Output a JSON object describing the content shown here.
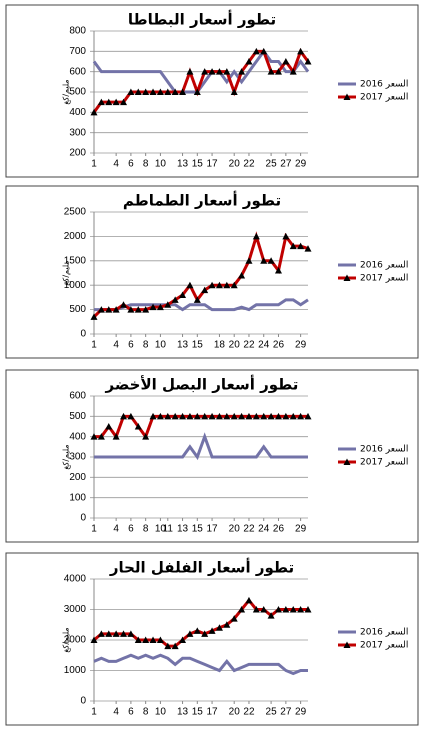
{
  "chart_data": [
    {
      "type": "line",
      "title": "تطور أسعار البطاطا",
      "y_label": "مليم/كغ",
      "x": [
        1,
        2,
        3,
        4,
        5,
        6,
        7,
        8,
        9,
        10,
        11,
        12,
        13,
        14,
        15,
        16,
        17,
        18,
        19,
        20,
        21,
        22,
        23,
        24,
        25,
        26,
        27,
        28,
        29,
        30
      ],
      "xlim": [
        1,
        30
      ],
      "xticks": [
        1,
        4,
        6,
        8,
        10,
        13,
        15,
        17,
        20,
        22,
        25,
        27,
        29
      ],
      "ylim": [
        200,
        800
      ],
      "yticks": [
        200,
        300,
        400,
        500,
        600,
        700,
        800
      ],
      "grid": true,
      "legend": "right",
      "series": [
        {
          "name": "السعر 2016",
          "color": "#7373a8",
          "marker": null,
          "values": [
            650,
            600,
            600,
            600,
            600,
            600,
            600,
            600,
            600,
            600,
            550,
            500,
            500,
            500,
            500,
            550,
            600,
            600,
            550,
            600,
            550,
            600,
            650,
            700,
            650,
            650,
            600,
            600,
            650,
            600
          ]
        },
        {
          "name": "السعر 2017",
          "color": "#c00000",
          "marker": "triangle",
          "values": [
            400,
            450,
            450,
            450,
            450,
            500,
            500,
            500,
            500,
            500,
            500,
            500,
            500,
            600,
            500,
            600,
            600,
            600,
            600,
            500,
            600,
            650,
            700,
            700,
            600,
            600,
            650,
            600,
            700,
            650
          ]
        }
      ]
    },
    {
      "type": "line",
      "title": "تطور أسعار الطماطم",
      "y_label": "مليم/كغ",
      "x": [
        1,
        2,
        3,
        4,
        5,
        6,
        7,
        8,
        9,
        10,
        11,
        12,
        13,
        14,
        15,
        16,
        17,
        18,
        19,
        20,
        21,
        22,
        23,
        24,
        25,
        26,
        27,
        28,
        29,
        30
      ],
      "xlim": [
        1,
        30
      ],
      "xticks": [
        1,
        4,
        6,
        8,
        10,
        13,
        15,
        18,
        20,
        22,
        24,
        26,
        29
      ],
      "ylim": [
        0,
        2500
      ],
      "yticks": [
        0,
        500,
        1000,
        1500,
        2000,
        2500
      ],
      "grid": true,
      "legend": "right",
      "series": [
        {
          "name": "السعر 2016",
          "color": "#7373a8",
          "marker": null,
          "values": [
            500,
            500,
            500,
            500,
            550,
            600,
            600,
            600,
            600,
            600,
            600,
            600,
            500,
            600,
            600,
            600,
            500,
            500,
            500,
            500,
            550,
            500,
            600,
            600,
            600,
            600,
            700,
            700,
            600,
            700
          ]
        },
        {
          "name": "السعر 2017",
          "color": "#c00000",
          "marker": "triangle",
          "values": [
            350,
            500,
            500,
            500,
            600,
            500,
            500,
            500,
            550,
            550,
            600,
            700,
            800,
            1000,
            700,
            900,
            1000,
            1000,
            1000,
            1000,
            1200,
            1500,
            2000,
            1500,
            1500,
            1300,
            2000,
            1800,
            1800,
            1750
          ]
        }
      ]
    },
    {
      "type": "line",
      "title": "تطور أسعار البصل الأخضر",
      "y_label": "مليم/كغ",
      "x": [
        1,
        2,
        3,
        4,
        5,
        6,
        7,
        8,
        9,
        10,
        11,
        12,
        13,
        14,
        15,
        16,
        17,
        18,
        19,
        20,
        21,
        22,
        23,
        24,
        25,
        26,
        27,
        28,
        29,
        30
      ],
      "xlim": [
        1,
        30
      ],
      "xticks": [
        1,
        4,
        6,
        8,
        10,
        11,
        13,
        15,
        17,
        20,
        22,
        24,
        26,
        29
      ],
      "ylim": [
        0,
        600
      ],
      "yticks": [
        0,
        100,
        200,
        300,
        400,
        500,
        600
      ],
      "grid": true,
      "legend": "right",
      "series": [
        {
          "name": "السعر 2016",
          "color": "#7373a8",
          "marker": null,
          "values": [
            300,
            300,
            300,
            300,
            300,
            300,
            300,
            300,
            300,
            300,
            300,
            300,
            300,
            350,
            300,
            400,
            300,
            300,
            300,
            300,
            300,
            300,
            300,
            350,
            300,
            300,
            300,
            300,
            300,
            300
          ]
        },
        {
          "name": "السعر 2017",
          "color": "#c00000",
          "marker": "triangle",
          "values": [
            400,
            400,
            450,
            400,
            500,
            500,
            450,
            400,
            500,
            500,
            500,
            500,
            500,
            500,
            500,
            500,
            500,
            500,
            500,
            500,
            500,
            500,
            500,
            500,
            500,
            500,
            500,
            500,
            500,
            500
          ]
        }
      ]
    },
    {
      "type": "line",
      "title": "تطور أسعار الفلفل الحار",
      "y_label": "مليم/كغ",
      "x": [
        1,
        2,
        3,
        4,
        5,
        6,
        7,
        8,
        9,
        10,
        11,
        12,
        13,
        14,
        15,
        16,
        17,
        18,
        19,
        20,
        21,
        22,
        23,
        24,
        25,
        26,
        27,
        28,
        29,
        30
      ],
      "xlim": [
        1,
        30
      ],
      "xticks": [
        1,
        4,
        6,
        8,
        10,
        13,
        15,
        17,
        20,
        22,
        25,
        27,
        29
      ],
      "ylim": [
        0,
        4000
      ],
      "yticks": [
        0,
        1000,
        2000,
        3000,
        4000
      ],
      "grid": true,
      "legend": "right",
      "series": [
        {
          "name": "السعر 2016",
          "color": "#7373a8",
          "marker": null,
          "values": [
            1300,
            1400,
            1300,
            1300,
            1400,
            1500,
            1400,
            1500,
            1400,
            1500,
            1400,
            1200,
            1400,
            1400,
            1300,
            1200,
            1100,
            1000,
            1300,
            1000,
            1100,
            1200,
            1200,
            1200,
            1200,
            1200,
            1000,
            900,
            1000,
            1000
          ]
        },
        {
          "name": "السعر 2017",
          "color": "#c00000",
          "marker": "triangle",
          "values": [
            2000,
            2200,
            2200,
            2200,
            2200,
            2200,
            2000,
            2000,
            2000,
            2000,
            1800,
            1800,
            2000,
            2200,
            2300,
            2200,
            2300,
            2400,
            2500,
            2700,
            3000,
            3300,
            3000,
            3000,
            2800,
            3000,
            3000,
            3000,
            3000,
            3000
          ]
        }
      ]
    }
  ]
}
